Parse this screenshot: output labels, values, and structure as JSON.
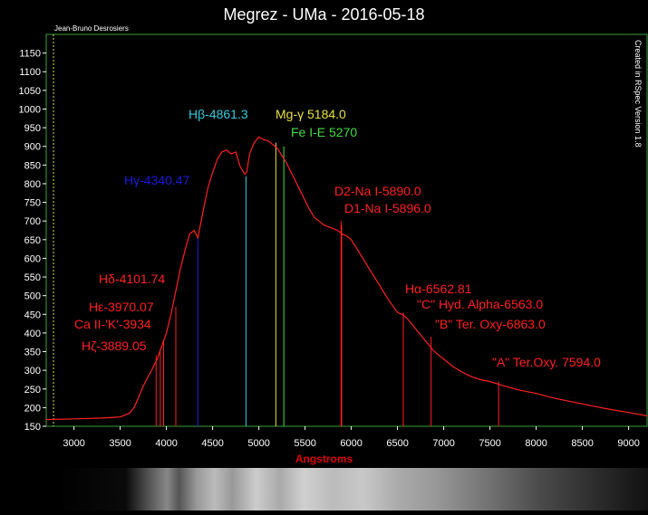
{
  "header": {
    "title": "Megrez - UMa - 2016-05-18",
    "author": "Jean-Bruno Desrosiers",
    "created": "Created in RSpec Version 1.8"
  },
  "colors": {
    "background": "#000000",
    "frame": "#3ca03c",
    "spectrum": "#ff2020",
    "axis_label": "#e00000",
    "tick_text": "#ffffff"
  },
  "chart_data": {
    "type": "line",
    "title": "Megrez - UMa - 2016-05-18",
    "xlabel": "Angstroms",
    "ylabel": "",
    "xlim": [
      2700,
      9200
    ],
    "ylim": [
      150,
      1200
    ],
    "xticks": [
      3000,
      3500,
      4000,
      4500,
      5000,
      5500,
      6000,
      6500,
      7000,
      7500,
      8000,
      8500,
      9000
    ],
    "yticks": [
      150,
      200,
      250,
      300,
      350,
      400,
      450,
      500,
      550,
      600,
      650,
      700,
      750,
      800,
      850,
      900,
      950,
      1000,
      1050,
      1100,
      1150
    ],
    "grid": false,
    "series": [
      {
        "color": "#ff2020",
        "x": [
          2700,
          3000,
          3300,
          3500,
          3600,
          3650,
          3700,
          3750,
          3800,
          3850,
          3900,
          3950,
          4000,
          4050,
          4100,
          4150,
          4200,
          4250,
          4300,
          4340,
          4400,
          4450,
          4500,
          4550,
          4600,
          4650,
          4700,
          4750,
          4800,
          4850,
          4870,
          4900,
          4950,
          5000,
          5050,
          5100,
          5150,
          5200,
          5250,
          5300,
          5350,
          5400,
          5450,
          5500,
          5550,
          5600,
          5650,
          5700,
          5750,
          5800,
          5850,
          5890,
          5900,
          5950,
          6000,
          6100,
          6200,
          6300,
          6400,
          6500,
          6563,
          6600,
          6700,
          6800,
          6900,
          7000,
          7100,
          7200,
          7300,
          7400,
          7500,
          7600,
          7700,
          7800,
          8000,
          8200,
          8400,
          8600,
          8800,
          9000,
          9200
        ],
        "y": [
          168,
          170,
          172,
          175,
          185,
          200,
          228,
          258,
          282,
          305,
          330,
          365,
          400,
          450,
          510,
          570,
          620,
          665,
          675,
          655,
          730,
          790,
          830,
          865,
          885,
          890,
          880,
          885,
          845,
          825,
          832,
          880,
          910,
          925,
          918,
          915,
          905,
          895,
          875,
          855,
          830,
          805,
          780,
          755,
          730,
          710,
          700,
          690,
          685,
          680,
          675,
          668,
          665,
          660,
          650,
          610,
          570,
          530,
          490,
          455,
          448,
          440,
          410,
          380,
          350,
          330,
          310,
          295,
          283,
          275,
          270,
          262,
          255,
          248,
          238,
          225,
          215,
          205,
          195,
          187,
          178
        ]
      }
    ],
    "lines": [
      {
        "x": 3889.05,
        "label": "Hζ-3889.05",
        "color": "#ff2020",
        "top": 340
      },
      {
        "x": 3934,
        "label": "Ca II-'K'-3934",
        "color": "#ff2020",
        "top": 350
      },
      {
        "x": 3970.07,
        "label": "Hε-3970.07",
        "color": "#ff2020",
        "top": 380
      },
      {
        "x": 4101.74,
        "label": "Hδ-4101.74",
        "color": "#ff2020",
        "top": 470
      },
      {
        "x": 4340.47,
        "label": "Hγ-4340.47",
        "color": "#1a1ae0",
        "top": 660
      },
      {
        "x": 4861.3,
        "label": "Hβ-4861.3",
        "color": "#33ccdd",
        "top": 820
      },
      {
        "x": 5184.0,
        "label": "Mg-γ 5184.0",
        "color": "#e8e040",
        "top": 910
      },
      {
        "x": 5270,
        "label": "Fe I-E 5270",
        "color": "#44dd44",
        "top": 900
      },
      {
        "x": 5890.0,
        "label": "D2-Na I-5890.0",
        "color": "#ff2020",
        "top": 700
      },
      {
        "x": 5896.0,
        "label": "D1-Na I-5896.0",
        "color": "#ff2020",
        "top": 690
      },
      {
        "x": 6562.81,
        "label": "Hα-6562.81",
        "color": "#ff2020",
        "top": 455
      },
      {
        "x": 6563.0,
        "label": "\"C\" Hyd. Alpha-6563.0",
        "color": "#ff2020",
        "top": 445
      },
      {
        "x": 6863.0,
        "label": "\"B\" Ter. Oxy-6863.0",
        "color": "#ff2020",
        "top": 390
      },
      {
        "x": 7594.0,
        "label": "\"A\" Ter.Oxy. 7594.0",
        "color": "#ff2020",
        "top": 270
      }
    ]
  }
}
